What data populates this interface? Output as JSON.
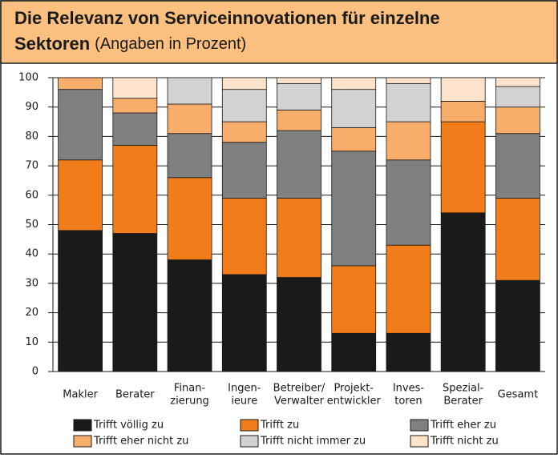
{
  "chart_data": {
    "type": "stacked-bar",
    "title": [
      "Die Relevanz von Serviceinnovationen für einzelne",
      "Sektoren"
    ],
    "subtitle": "(Angaben in Prozent)",
    "categories": [
      [
        "Makler"
      ],
      [
        "Berater"
      ],
      [
        "Finan-",
        "zierung"
      ],
      [
        "Ingen-",
        "ieure"
      ],
      [
        "Betreiber/",
        "Verwalter"
      ],
      [
        "Projekt-",
        "entwickler"
      ],
      [
        "Inves-",
        "toren"
      ],
      [
        "Spezial-",
        "Berater"
      ],
      [
        "Gesamt"
      ]
    ],
    "series": [
      {
        "name": "Trifft völlig zu",
        "color": "#1a1a1a",
        "values": [
          48,
          47,
          38,
          33,
          32,
          13,
          13,
          54,
          31
        ]
      },
      {
        "name": "Trifft zu",
        "color": "#f07d1a",
        "values": [
          24,
          30,
          28,
          26,
          27,
          23,
          30,
          31,
          28
        ]
      },
      {
        "name": "Trifft eher zu",
        "color": "#808080",
        "values": [
          24,
          11,
          15,
          19,
          23,
          39,
          29,
          0,
          22
        ]
      },
      {
        "name": "Trifft eher nicht zu",
        "color": "#f8ad6a",
        "values": [
          4,
          5,
          10,
          7,
          7,
          8,
          13,
          7,
          9
        ]
      },
      {
        "name": "Trifft nicht immer zu",
        "color": "#d2d2d2",
        "values": [
          0,
          0,
          9,
          11,
          9,
          13,
          13,
          0,
          7
        ]
      },
      {
        "name": "Trifft nicht zu",
        "color": "#fde3cc",
        "values": [
          0,
          7,
          0,
          4,
          2,
          4,
          2,
          8,
          3
        ]
      }
    ],
    "ylim": [
      0,
      100
    ],
    "yticks": [
      0,
      10,
      20,
      30,
      40,
      50,
      60,
      70,
      80,
      90,
      100
    ],
    "grid": true
  }
}
